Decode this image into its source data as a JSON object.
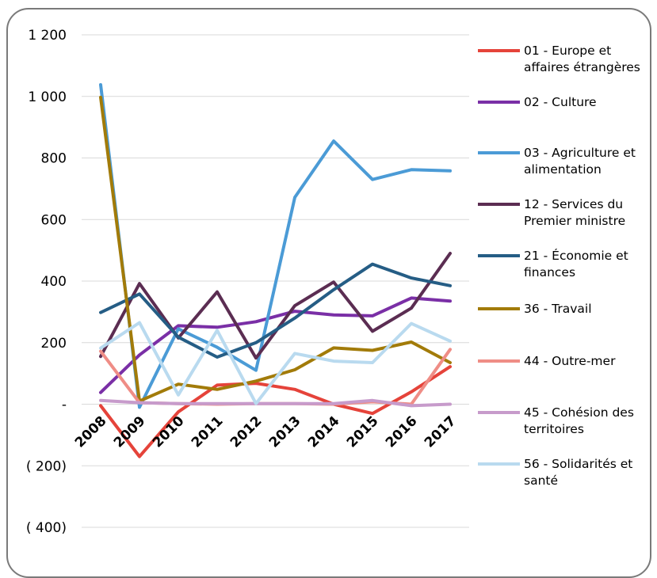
{
  "chart_data": {
    "type": "line",
    "title": "",
    "xlabel": "",
    "ylabel": "",
    "ylim": [
      -400,
      1200
    ],
    "yticks": [
      1200,
      1000,
      800,
      600,
      400,
      200,
      0,
      -200,
      -400
    ],
    "ytick_labels": [
      "1 200",
      "1 000",
      "800",
      "600",
      "400",
      "200",
      "-",
      "( 200)",
      "( 400)"
    ],
    "x": [
      "2008",
      "2009",
      "2010",
      "2011",
      "2012",
      "2013",
      "2014",
      "2015",
      "2016",
      "2017"
    ],
    "grid": "horizontal",
    "legend": "right",
    "series": [
      {
        "name": "01 - Europe et affaires étrangères",
        "legend_lines": [
          "01 - Europe et",
          "affaires étrangères"
        ],
        "color": "#e5433a",
        "values": [
          -5,
          -170,
          -25,
          62,
          68,
          48,
          0,
          -30,
          40,
          122
        ]
      },
      {
        "name": "02 - Culture",
        "legend_lines": [
          "02 - Culture"
        ],
        "color": "#7a2fa6",
        "values": [
          38,
          160,
          255,
          250,
          268,
          302,
          290,
          287,
          345,
          335
        ]
      },
      {
        "name": "03 - Agriculture et alimentation",
        "legend_lines": [
          "03 - Agriculture et",
          "alimentation"
        ],
        "color": "#4b9bd6",
        "values": [
          1038,
          -10,
          245,
          185,
          110,
          672,
          855,
          730,
          762,
          758
        ]
      },
      {
        "name": "12 - Services du Premier ministre",
        "legend_lines": [
          "12 - Services du",
          "Premier ministre"
        ],
        "color": "#5b2d52",
        "values": [
          155,
          392,
          215,
          365,
          150,
          320,
          397,
          237,
          312,
          490
        ]
      },
      {
        "name": "21 - Économie et finances",
        "legend_lines": [
          "21 - Économie et",
          "finances"
        ],
        "color": "#255d85",
        "values": [
          298,
          358,
          218,
          153,
          200,
          280,
          372,
          455,
          410,
          385
        ]
      },
      {
        "name": "36 - Travail",
        "legend_lines": [
          "36 - Travail"
        ],
        "color": "#a27b09",
        "values": [
          997,
          10,
          65,
          48,
          75,
          112,
          183,
          175,
          202,
          135
        ]
      },
      {
        "name": "44 - Outre-mer",
        "legend_lines": [
          "44 - Outre-mer"
        ],
        "color": "#ef8d86",
        "values": [
          172,
          5,
          2,
          0,
          2,
          2,
          0,
          8,
          0,
          178
        ]
      },
      {
        "name": "45 - Cohésion des territoires",
        "legend_lines": [
          "45 - Cohésion des",
          "territoires"
        ],
        "color": "#c79bcb",
        "values": [
          12,
          5,
          2,
          2,
          2,
          2,
          2,
          12,
          -5,
          0
        ]
      },
      {
        "name": "56 - Solidarités et santé",
        "legend_lines": [
          "56 - Solidarités et",
          "santé"
        ],
        "color": "#b9daef",
        "values": [
          182,
          265,
          30,
          240,
          2,
          165,
          140,
          135,
          262,
          205
        ]
      }
    ]
  }
}
